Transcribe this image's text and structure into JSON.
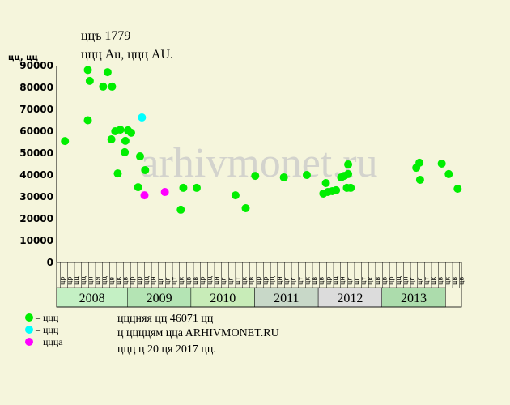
{
  "chart_data": {
    "type": "scatter",
    "title": "ццъ 1779",
    "subtitle": "ццц  Au, ццц  AU.",
    "y_label": "цц, цц",
    "watermark": "arhivmonet.ru",
    "notes": [
      "цццняя цц 46071 цц",
      "ц ццццям ццa ARHIVMONET.RU",
      "ццц ц 20 ця 2017 цц."
    ],
    "xlim": [
      2007.89,
      2014.25
    ],
    "ylim": [
      0,
      90000
    ],
    "yticks": [
      0,
      10000,
      20000,
      30000,
      40000,
      50000,
      60000,
      70000,
      80000,
      90000
    ],
    "xticks": [
      {
        "value": 2008,
        "label": "2008"
      },
      {
        "value": 2009,
        "label": "2009"
      },
      {
        "value": 2010,
        "label": "2010"
      },
      {
        "value": 2011,
        "label": "2011"
      },
      {
        "value": 2012,
        "label": "2012"
      },
      {
        "value": 2013,
        "label": "2013"
      }
    ],
    "month_ticks": [
      {
        "value": 2007.95,
        "label": "цр"
      },
      {
        "value": 2008.06,
        "label": "цр"
      },
      {
        "value": 2008.17,
        "label": "цц"
      },
      {
        "value": 2008.28,
        "label": "цц"
      },
      {
        "value": 2008.39,
        "label": "цн"
      },
      {
        "value": 2008.5,
        "label": "ця"
      },
      {
        "value": 2008.61,
        "label": "цц"
      },
      {
        "value": 2008.72,
        "label": "цв"
      },
      {
        "value": 2008.83,
        "label": "цк"
      },
      {
        "value": 2008.94,
        "label": "цв"
      },
      {
        "value": 2009.05,
        "label": "цр"
      },
      {
        "value": 2009.16,
        "label": "цр"
      },
      {
        "value": 2009.27,
        "label": "цц"
      },
      {
        "value": 2009.38,
        "label": "цн"
      },
      {
        "value": 2009.49,
        "label": "цг"
      },
      {
        "value": 2009.6,
        "label": "цг"
      },
      {
        "value": 2009.71,
        "label": "цт"
      },
      {
        "value": 2009.82,
        "label": "цк"
      },
      {
        "value": 2009.93,
        "label": "цв"
      },
      {
        "value": 2010.04,
        "label": "цв"
      },
      {
        "value": 2010.15,
        "label": "цр"
      },
      {
        "value": 2010.26,
        "label": "цц"
      },
      {
        "value": 2010.37,
        "label": "цн"
      },
      {
        "value": 2010.48,
        "label": "цг"
      },
      {
        "value": 2010.59,
        "label": "цг"
      },
      {
        "value": 2010.7,
        "label": "цт"
      },
      {
        "value": 2010.81,
        "label": "цк"
      },
      {
        "value": 2010.92,
        "label": "цв"
      },
      {
        "value": 2011.03,
        "label": "цр"
      },
      {
        "value": 2011.14,
        "label": "цр"
      },
      {
        "value": 2011.25,
        "label": "цц"
      },
      {
        "value": 2011.36,
        "label": "цн"
      },
      {
        "value": 2011.47,
        "label": "цг"
      },
      {
        "value": 2011.58,
        "label": "цг"
      },
      {
        "value": 2011.69,
        "label": "цт"
      },
      {
        "value": 2011.8,
        "label": "цк"
      },
      {
        "value": 2011.91,
        "label": "цв"
      },
      {
        "value": 2012.02,
        "label": "цв"
      },
      {
        "value": 2012.13,
        "label": "цр"
      },
      {
        "value": 2012.24,
        "label": "цц"
      },
      {
        "value": 2012.35,
        "label": "цн"
      },
      {
        "value": 2012.46,
        "label": "цг"
      },
      {
        "value": 2012.57,
        "label": "цг"
      },
      {
        "value": 2012.68,
        "label": "цт"
      },
      {
        "value": 2012.79,
        "label": "цк"
      },
      {
        "value": 2012.9,
        "label": "цв"
      },
      {
        "value": 2013.01,
        "label": "цв"
      },
      {
        "value": 2013.12,
        "label": "цр"
      },
      {
        "value": 2013.23,
        "label": "цц"
      },
      {
        "value": 2013.34,
        "label": "цн"
      },
      {
        "value": 2013.45,
        "label": "цг"
      },
      {
        "value": 2013.56,
        "label": "цг"
      },
      {
        "value": 2013.67,
        "label": "цт"
      },
      {
        "value": 2013.78,
        "label": "цк"
      },
      {
        "value": 2013.89,
        "label": "цв"
      },
      {
        "value": 2014.0,
        "label": "цк"
      },
      {
        "value": 2014.11,
        "label": "цв"
      },
      {
        "value": 2014.22,
        "label": "цв"
      }
    ],
    "series": [
      {
        "name": "– ццц",
        "color": "#00ee00",
        "x": [
          2008.02,
          2008.38,
          2008.41,
          2008.38,
          2008.62,
          2008.69,
          2008.76,
          2008.75,
          2008.81,
          2008.89,
          2008.85,
          2008.96,
          2008.97,
          2009.01,
          2009.06,
          2009.2,
          2009.17,
          2009.28,
          2009.84,
          2009.88,
          2010.09,
          2010.7,
          2010.86,
          2011.01,
          2011.46,
          2011.82,
          2012.08,
          2012.12,
          2012.15,
          2012.22,
          2012.28,
          2012.36,
          2012.41,
          2012.47,
          2012.47,
          2012.45,
          2012.51,
          2013.54,
          2013.59,
          2013.6,
          2013.94,
          2014.05,
          2014.19
        ],
        "values": [
          55500,
          88000,
          83000,
          65000,
          80400,
          87000,
          80400,
          56300,
          60000,
          60700,
          40700,
          50400,
          55600,
          60400,
          59300,
          48500,
          34400,
          42200,
          24100,
          34100,
          34100,
          30700,
          24800,
          39600,
          38900,
          40000,
          31500,
          36300,
          32200,
          32600,
          33000,
          38900,
          39600,
          44800,
          40400,
          34100,
          34100,
          43300,
          45600,
          37800,
          45200,
          40400,
          33700
        ]
      },
      {
        "name": "– ццц",
        "color": "#00ffff",
        "x": [
          2009.23
        ],
        "values": [
          66300
        ]
      },
      {
        "name": "– цццa",
        "color": "#ff00ff",
        "x": [
          2009.27,
          2009.59
        ],
        "values": [
          30700,
          32200
        ]
      }
    ]
  }
}
